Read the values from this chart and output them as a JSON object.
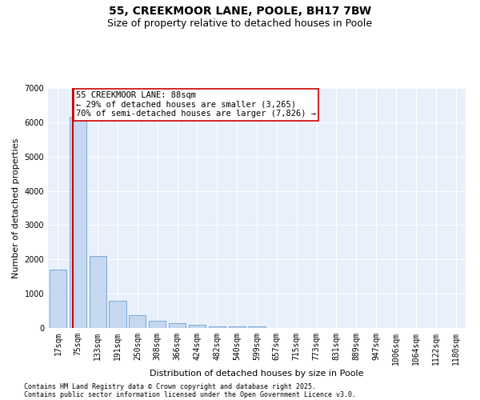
{
  "title": "55, CREEKMOOR LANE, POOLE, BH17 7BW",
  "subtitle": "Size of property relative to detached houses in Poole",
  "xlabel": "Distribution of detached houses by size in Poole",
  "ylabel": "Number of detached properties",
  "categories": [
    "17sqm",
    "75sqm",
    "133sqm",
    "191sqm",
    "250sqm",
    "308sqm",
    "366sqm",
    "424sqm",
    "482sqm",
    "540sqm",
    "599sqm",
    "657sqm",
    "715sqm",
    "773sqm",
    "831sqm",
    "889sqm",
    "947sqm",
    "1006sqm",
    "1064sqm",
    "1122sqm",
    "1180sqm"
  ],
  "values": [
    1700,
    6150,
    2100,
    800,
    370,
    210,
    145,
    95,
    58,
    48,
    38,
    10,
    5,
    3,
    2,
    1,
    1,
    0,
    0,
    0,
    0
  ],
  "bar_color": "#c5d8f0",
  "bar_edge_color": "#6a9fd0",
  "property_line_color": "#cc0000",
  "annotation_box_color": "#cc0000",
  "property_label": "55 CREEKMOOR LANE: 88sqm",
  "annotation_line1": "← 29% of detached houses are smaller (3,265)",
  "annotation_line2": "70% of semi-detached houses are larger (7,826) →",
  "ylim": [
    0,
    7000
  ],
  "yticks": [
    0,
    1000,
    2000,
    3000,
    4000,
    5000,
    6000,
    7000
  ],
  "background_color": "#e8f0fb",
  "grid_color": "#ffffff",
  "footer1": "Contains HM Land Registry data © Crown copyright and database right 2025.",
  "footer2": "Contains public sector information licensed under the Open Government Licence v3.0.",
  "title_fontsize": 10,
  "subtitle_fontsize": 9,
  "annotation_fontsize": 7.5,
  "tick_fontsize": 7,
  "axis_label_fontsize": 8,
  "footer_fontsize": 6
}
